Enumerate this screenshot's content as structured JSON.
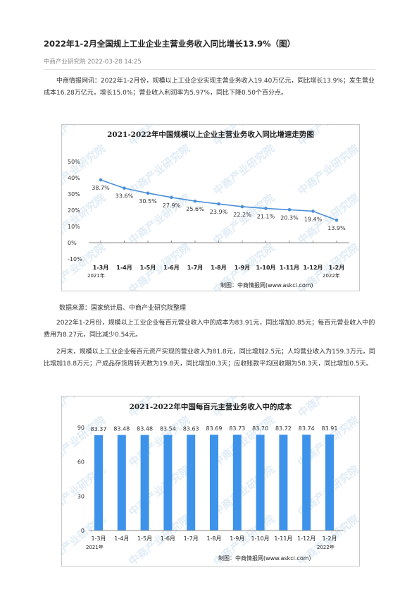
{
  "article": {
    "title": "2022年1-2月全国规上工业企业主营业务收入同比增长13.9%（图）",
    "source_name": "中商产业研究院",
    "datetime": "2022-03-28 14:25",
    "paragraphs": [
      "中商情报网讯：2022年1-2月份，规模以上工业企业实现主营业务收入19.40万亿元，同比增长13.9%；发生营业成本16.28万亿元，增长15.0%；营业收入利润率为5.97%，同比下降0.50个百分点。",
      "2022年1-2月份，规模以上工业企业每百元营业收入中的成本为83.91元，同比增加0.85元；每百元营业收入中的费用为8.27元，同比减少0.54元。",
      "2月末，规模以上工业企业每百元资产实现的营业收入为81.8元，同比增加2.5元；人均营业收入为159.3万元，同比增加18.8万元；产成品存货周转天数为19.8天，同比增加0.3天；应收账款平均回收期为58.3天，同比增加0.5天。"
    ],
    "data_source": "数据来源：国家统计局、中商产业研究院整理"
  },
  "watermark_text": "中商产业研究院",
  "colors": {
    "line": "#4a8fd9",
    "bar": "#3d93ea",
    "axis": "#888888"
  },
  "chart_data": [
    {
      "type": "line",
      "title": "2021-2022年中国规模以上企业主营业务收入同比增速走势图",
      "categories": [
        "1-3月",
        "1-4月",
        "1-5月",
        "1-6月",
        "1-7月",
        "1-8月",
        "1-9月",
        "1-10月",
        "1-11月",
        "1-12月",
        "1-2月"
      ],
      "series": [
        {
          "values": [
            38.7,
            33.6,
            30.5,
            27.9,
            25.6,
            23.9,
            22.2,
            21.1,
            20.3,
            19.4,
            13.9
          ],
          "labels": [
            "38.7%",
            "33.6%",
            "30.5%",
            "27.9%",
            "25.6%",
            "23.9%",
            "22.2%",
            "21.1%",
            "20.3%",
            "19.4%",
            "13.9%"
          ]
        }
      ],
      "yticks": [
        "50%",
        "40%",
        "30%",
        "20%",
        "10%",
        "0%",
        "-10%"
      ],
      "ytick_values": [
        50,
        40,
        30,
        20,
        10,
        0,
        -10
      ],
      "ylim": [
        -10,
        50
      ],
      "year_start": "2021年",
      "year_end": "2022年",
      "credit": "制图：中商情报网(www.askci.com)",
      "grid": false
    },
    {
      "type": "bar",
      "title": "2021-2022年中国每百元主营业务收入中的成本",
      "categories": [
        "1-3月",
        "1-4月",
        "1-5月",
        "1-6月",
        "1-7月",
        "1-8月",
        "1-9月",
        "1-10月",
        "1-11月",
        "1-12月",
        "1-2月"
      ],
      "series": [
        {
          "values": [
            83.37,
            83.48,
            83.48,
            83.54,
            83.63,
            83.69,
            83.73,
            83.7,
            83.72,
            83.74,
            83.91
          ],
          "labels": [
            "83.37",
            "83.48",
            "83.48",
            "83.54",
            "83.63",
            "83.69",
            "83.73",
            "83.70",
            "83.72",
            "83.74",
            "83.91"
          ]
        }
      ],
      "yticks": [
        "90",
        "60",
        "30",
        "0"
      ],
      "ytick_values": [
        90,
        60,
        30,
        0
      ],
      "ylim": [
        0,
        90
      ],
      "year_start": "2021年",
      "year_end": "2022年",
      "credit": "制图：中商情报网(www.askci.com）",
      "grid": false
    }
  ]
}
